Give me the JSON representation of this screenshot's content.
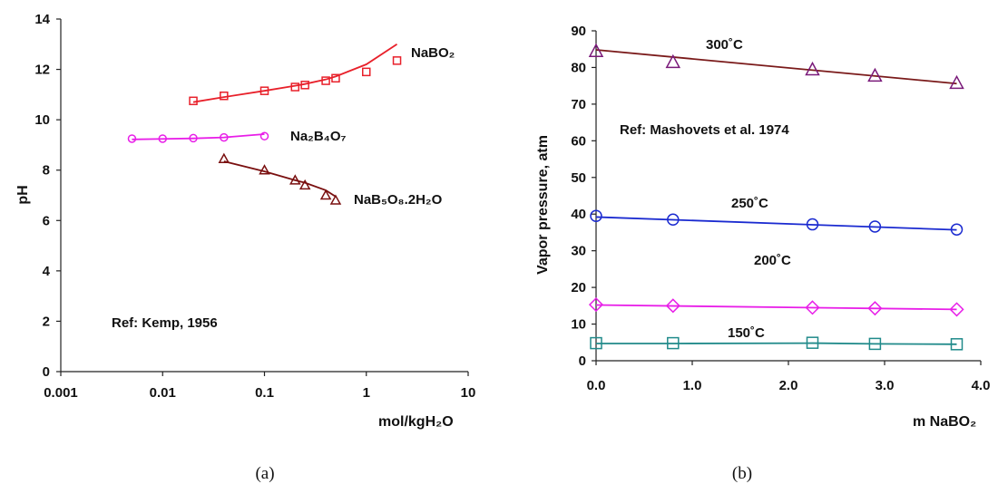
{
  "chart_data": [
    {
      "type": "line",
      "panel_caption": "(a)",
      "xscale": "log",
      "xlim": [
        0.001,
        10
      ],
      "ylim": [
        0,
        14
      ],
      "xlabel": "mol/kgH₂O",
      "ylabel": "pH",
      "xticks": [
        "0.001",
        "0.01",
        "0.1",
        "1",
        "10"
      ],
      "yticks": [
        "0",
        "2",
        "4",
        "6",
        "8",
        "10",
        "12",
        "14"
      ],
      "annotations": [
        "Ref: Kemp, 1956"
      ],
      "series": [
        {
          "name": "NaBO₂",
          "color": "#e8202a",
          "marker": "square",
          "points": [
            [
              0.02,
              10.75
            ],
            [
              0.04,
              10.95
            ],
            [
              0.1,
              11.15
            ],
            [
              0.2,
              11.3
            ],
            [
              0.25,
              11.38
            ],
            [
              0.4,
              11.55
            ],
            [
              0.5,
              11.65
            ],
            [
              1.0,
              11.9
            ],
            [
              2.0,
              12.35
            ]
          ],
          "fit": [
            [
              0.02,
              10.7
            ],
            [
              0.04,
              10.9
            ],
            [
              0.1,
              11.15
            ],
            [
              0.2,
              11.35
            ],
            [
              0.25,
              11.42
            ],
            [
              0.4,
              11.6
            ],
            [
              0.5,
              11.72
            ],
            [
              1.0,
              12.2
            ],
            [
              2.0,
              13.0
            ]
          ]
        },
        {
          "name": "Na₂B₄O₇",
          "color": "#e81ee8",
          "marker": "circle",
          "points": [
            [
              0.005,
              9.25
            ],
            [
              0.01,
              9.25
            ],
            [
              0.02,
              9.27
            ],
            [
              0.04,
              9.3
            ],
            [
              0.1,
              9.35
            ]
          ],
          "fit": [
            [
              0.005,
              9.22
            ],
            [
              0.01,
              9.24
            ],
            [
              0.02,
              9.26
            ],
            [
              0.04,
              9.3
            ],
            [
              0.1,
              9.43
            ]
          ]
        },
        {
          "name": "NaB₅O₈.2H₂O",
          "color": "#7a1010",
          "marker": "triangle",
          "points": [
            [
              0.04,
              8.45
            ],
            [
              0.1,
              8.0
            ],
            [
              0.2,
              7.6
            ],
            [
              0.25,
              7.4
            ],
            [
              0.4,
              7.0
            ],
            [
              0.5,
              6.8
            ]
          ],
          "fit": [
            [
              0.04,
              8.35
            ],
            [
              0.1,
              7.95
            ],
            [
              0.2,
              7.6
            ],
            [
              0.25,
              7.5
            ],
            [
              0.4,
              7.2
            ],
            [
              0.5,
              6.95
            ]
          ]
        }
      ]
    },
    {
      "type": "line",
      "panel_caption": "(b)",
      "xlim": [
        0,
        4
      ],
      "ylim": [
        0,
        90
      ],
      "xlabel": "m NaBO₂",
      "ylabel": "Vapor pressure, atm",
      "xticks": [
        "0.0",
        "1.0",
        "2.0",
        "3.0",
        "4.0"
      ],
      "yticks": [
        "0",
        "10",
        "20",
        "30",
        "40",
        "50",
        "60",
        "70",
        "80",
        "90"
      ],
      "annotations": [
        "Ref: Mashovets et al. 1974"
      ],
      "series": [
        {
          "name": "300˚C",
          "color": "#7a1a7a",
          "line_color": "#7a1a1a",
          "marker": "triangle",
          "x": [
            0.0,
            0.8,
            2.25,
            2.9,
            3.75
          ],
          "y": [
            84.5,
            81.5,
            79.5,
            77.8,
            75.8
          ],
          "fit": [
            [
              0.0,
              84.8
            ],
            [
              3.75,
              75.6
            ]
          ]
        },
        {
          "name": "250˚C",
          "color": "#1a2ad0",
          "line_color": "#1a2ad0",
          "marker": "circle",
          "x": [
            0.0,
            0.8,
            2.25,
            2.9,
            3.75
          ],
          "y": [
            39.5,
            38.5,
            37.2,
            36.6,
            35.8
          ],
          "fit": [
            [
              0.0,
              39.2
            ],
            [
              3.75,
              35.7
            ]
          ]
        },
        {
          "name": "200˚C",
          "color": "#e81ee8",
          "line_color": "#e81ee8",
          "marker": "diamond",
          "x": [
            0.0,
            0.8,
            2.25,
            2.9,
            3.75
          ],
          "y": [
            15.3,
            15.0,
            14.5,
            14.3,
            14.0
          ],
          "fit": [
            [
              0.0,
              15.2
            ],
            [
              3.75,
              14.0
            ]
          ]
        },
        {
          "name": "150˚C",
          "color": "#208a8a",
          "line_color": "#208a8a",
          "marker": "square",
          "x": [
            0.0,
            0.8,
            2.25,
            2.9,
            3.75
          ],
          "y": [
            4.8,
            4.8,
            4.9,
            4.6,
            4.5
          ],
          "fit": [
            [
              0.0,
              4.7
            ],
            [
              0.8,
              4.7
            ],
            [
              2.25,
              4.8
            ],
            [
              2.9,
              4.6
            ],
            [
              3.75,
              4.5
            ]
          ]
        }
      ]
    }
  ]
}
